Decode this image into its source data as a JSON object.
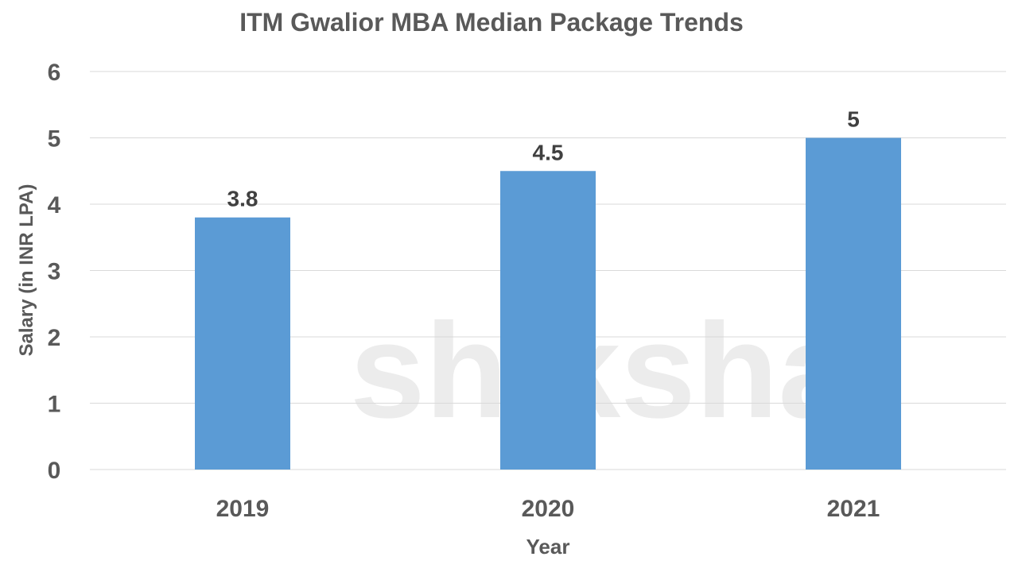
{
  "chart_data": {
    "type": "bar",
    "title": "ITM Gwalior MBA Median Package Trends",
    "xlabel": "Year",
    "ylabel": "Salary (in INR LPA)",
    "categories": [
      "2019",
      "2020",
      "2021"
    ],
    "values": [
      3.8,
      4.5,
      5
    ],
    "data_labels": [
      "3.8",
      "4.5",
      "5"
    ],
    "ylim": [
      0,
      6
    ],
    "yticks": [
      0,
      1,
      2,
      3,
      4,
      5,
      6
    ],
    "grid": true,
    "legend": "none",
    "bar_color": "#5B9BD5",
    "watermark": "shiksha"
  }
}
